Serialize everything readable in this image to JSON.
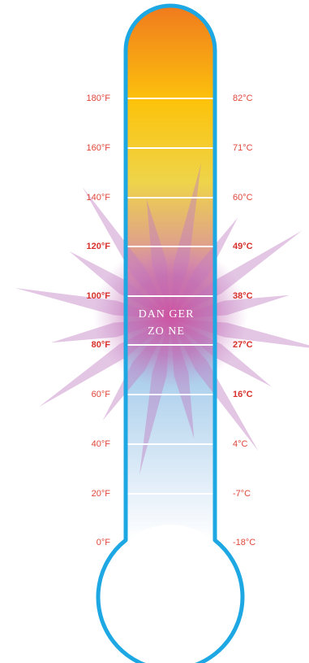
{
  "thermometer": {
    "danger_zone": {
      "line1": "DAN GER",
      "line2": "ZO NE"
    },
    "fahrenheit": [
      {
        "label": "180°F",
        "emphasis": false
      },
      {
        "label": "160°F",
        "emphasis": false
      },
      {
        "label": "140°F",
        "emphasis": false
      },
      {
        "label": "120°F",
        "emphasis": true
      },
      {
        "label": "100°F",
        "emphasis": true
      },
      {
        "label": "80°F",
        "emphasis": true
      },
      {
        "label": "60°F",
        "emphasis": false
      },
      {
        "label": "40°F",
        "emphasis": false
      },
      {
        "label": "20°F",
        "emphasis": false
      },
      {
        "label": "0°F",
        "emphasis": false
      }
    ],
    "celsius": [
      {
        "label": "82°C",
        "emphasis": false
      },
      {
        "label": "71°C",
        "emphasis": false
      },
      {
        "label": "60°C",
        "emphasis": false
      },
      {
        "label": "49°C",
        "emphasis": true
      },
      {
        "label": "38°C",
        "emphasis": true
      },
      {
        "label": "27°C",
        "emphasis": true
      },
      {
        "label": "16°C",
        "emphasis": true
      },
      {
        "label": "4°C",
        "emphasis": false
      },
      {
        "label": "-7°C",
        "emphasis": false
      },
      {
        "label": "-18°C",
        "emphasis": false
      }
    ],
    "colors": {
      "outline": "#1da7e3",
      "hot_top": "#f07a1e",
      "hot_mid": "#fcc30c",
      "danger_glow": "#d0469a",
      "cold": "#a8cdeb",
      "label": "#e0463a"
    }
  }
}
